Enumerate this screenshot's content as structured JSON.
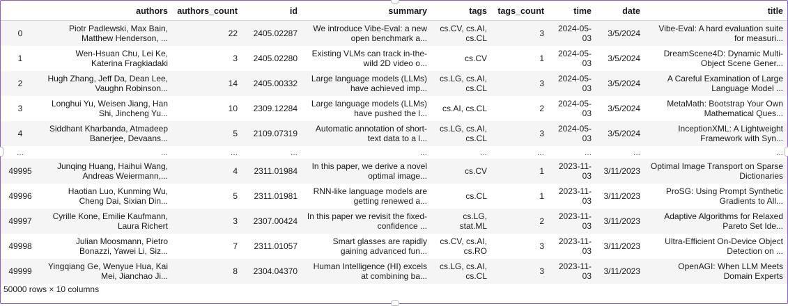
{
  "table": {
    "columns": [
      "",
      "authors",
      "authors_count",
      "id",
      "summary",
      "tags",
      "tags_count",
      "time",
      "date",
      "title"
    ],
    "rows": [
      {
        "index": "0",
        "authors": "Piotr Padlewski, Max Bain, Matthew Henderson, ...",
        "authors_count": "22",
        "id": "2405.02287",
        "summary": "We introduce Vibe-Eval: a new open benchmark a...",
        "tags": "cs.CV, cs.AI, cs.CL",
        "tags_count": "3",
        "time": "2024-05-03",
        "date": "3/5/2024",
        "title": "Vibe-Eval: A hard evaluation suite for measuri..."
      },
      {
        "index": "1",
        "authors": "Wen-Hsuan Chu, Lei Ke, Katerina Fragkiadaki",
        "authors_count": "3",
        "id": "2405.02280",
        "summary": "Existing VLMs can track in-the-wild 2D video o...",
        "tags": "cs.CV",
        "tags_count": "1",
        "time": "2024-05-03",
        "date": "3/5/2024",
        "title": "DreamScene4D: Dynamic Multi-Object Scene Gener..."
      },
      {
        "index": "2",
        "authors": "Hugh Zhang, Jeff Da, Dean Lee, Vaughn Robinson...",
        "authors_count": "14",
        "id": "2405.00332",
        "summary": "Large language models (LLMs) have achieved imp...",
        "tags": "cs.LG, cs.AI, cs.CL",
        "tags_count": "3",
        "time": "2024-05-03",
        "date": "3/5/2024",
        "title": "A Careful Examination of Large Language Model ..."
      },
      {
        "index": "3",
        "authors": "Longhui Yu, Weisen Jiang, Han Shi, Jincheng Yu...",
        "authors_count": "10",
        "id": "2309.12284",
        "summary": "Large language models (LLMs) have pushed the l...",
        "tags": "cs.AI, cs.CL",
        "tags_count": "2",
        "time": "2024-05-03",
        "date": "3/5/2024",
        "title": "MetaMath: Bootstrap Your Own Mathematical Ques..."
      },
      {
        "index": "4",
        "authors": "Siddhant Kharbanda, Atmadeep Banerjee, Devaans...",
        "authors_count": "5",
        "id": "2109.07319",
        "summary": "Automatic annotation of short-text data to a l...",
        "tags": "cs.LG, cs.AI, cs.CL",
        "tags_count": "3",
        "time": "2024-05-03",
        "date": "3/5/2024",
        "title": "InceptionXML: A Lightweight Framework with Syn..."
      },
      {
        "ellipsis": true,
        "index": "...",
        "authors": "...",
        "authors_count": "...",
        "id": "...",
        "summary": "...",
        "tags": "...",
        "tags_count": "...",
        "time": "...",
        "date": "...",
        "title": "..."
      },
      {
        "index": "49995",
        "authors": "Junqing Huang, Haihui Wang, Andreas Weiermann,...",
        "authors_count": "4",
        "id": "2311.01984",
        "summary": "In this paper, we derive a novel optimal image...",
        "tags": "cs.CV",
        "tags_count": "1",
        "time": "2023-11-03",
        "date": "3/11/2023",
        "title": "Optimal Image Transport on Sparse Dictionaries"
      },
      {
        "index": "49996",
        "authors": "Haotian Luo, Kunming Wu, Cheng Dai, Sixian Din...",
        "authors_count": "5",
        "id": "2311.01981",
        "summary": "RNN-like language models are getting renewed a...",
        "tags": "cs.CL",
        "tags_count": "1",
        "time": "2023-11-03",
        "date": "3/11/2023",
        "title": "ProSG: Using Prompt Synthetic Gradients to All..."
      },
      {
        "index": "49997",
        "authors": "Cyrille Kone, Emilie Kaufmann, Laura Richert",
        "authors_count": "3",
        "id": "2307.00424",
        "summary": "In this paper we revisit the fixed-confidence ...",
        "tags": "cs.LG, stat.ML",
        "tags_count": "2",
        "time": "2023-11-03",
        "date": "3/11/2023",
        "title": "Adaptive Algorithms for Relaxed Pareto Set Ide..."
      },
      {
        "index": "49998",
        "authors": "Julian Moosmann, Pietro Bonazzi, Yawei Li, Siz...",
        "authors_count": "7",
        "id": "2311.01057",
        "summary": "Smart glasses are rapidly gaining advanced fun...",
        "tags": "cs.CV, cs.AI, cs.RO",
        "tags_count": "3",
        "time": "2023-11-03",
        "date": "3/11/2023",
        "title": "Ultra-Efficient On-Device Object Detection on ..."
      },
      {
        "index": "49999",
        "authors": "Yingqiang Ge, Wenyue Hua, Kai Mei, Jianchao Ji...",
        "authors_count": "8",
        "id": "2304.04370",
        "summary": "Human Intelligence (HI) excels at combining ba...",
        "tags": "cs.LG, cs.AI, cs.CL",
        "tags_count": "3",
        "time": "2023-11-03",
        "date": "3/11/2023",
        "title": "OpenAGI: When LLM Meets Domain Experts"
      }
    ]
  },
  "footer": {
    "shape_text": "50000 rows × 10 columns"
  }
}
